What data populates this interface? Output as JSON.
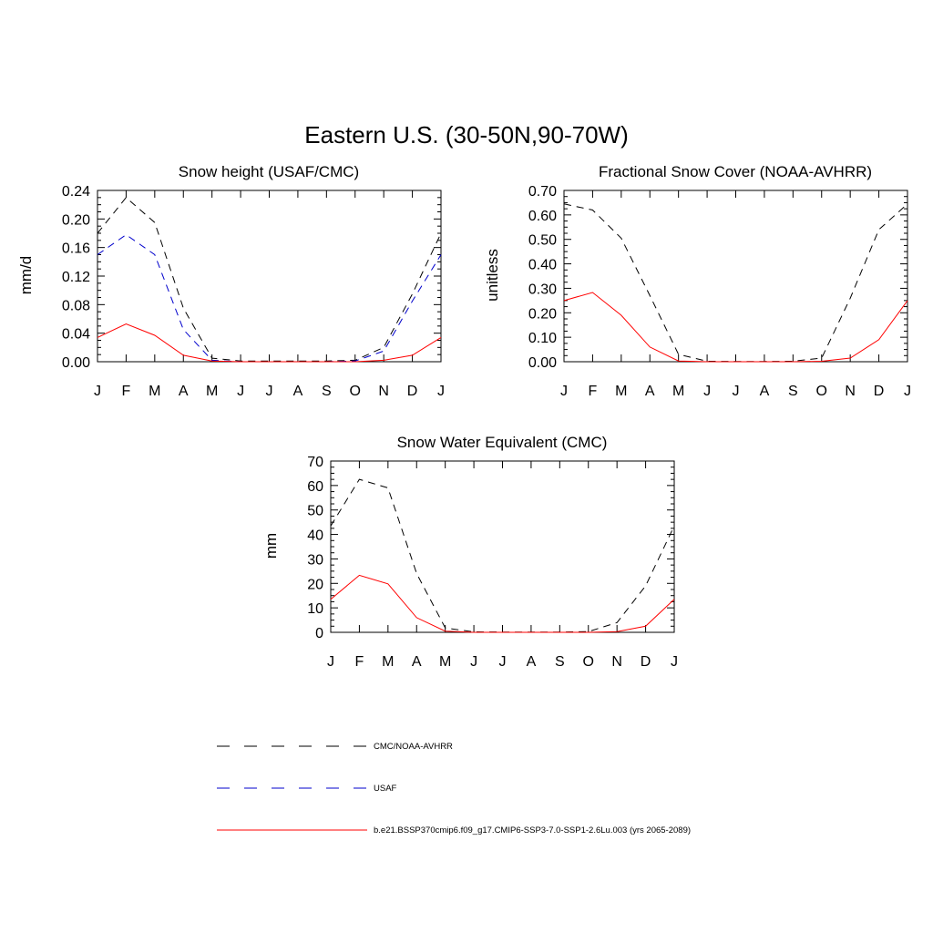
{
  "figure": {
    "title": "Eastern U.S. (30-50N,90-70W)"
  },
  "colors": {
    "obs": "#000000",
    "usaf": "#0000cc",
    "model": "#ff0000"
  },
  "legend": [
    {
      "label": "CMC/NOAA-AVHRR",
      "color": "#000000",
      "dash": "dashed"
    },
    {
      "label": "USAF",
      "color": "#0000cc",
      "dash": "dashed"
    },
    {
      "label": "b.e21.BSSP370cmip6.f09_g17.CMIP6-SSP3-7.0-SSP1-2.6Lu.003 (yrs 2065-2089)",
      "color": "#ff0000",
      "dash": "solid"
    }
  ],
  "chart_data": [
    {
      "type": "line",
      "title": "Snow height (USAF/CMC)",
      "xlabel": "",
      "ylabel": "mm/d",
      "categories": [
        "J",
        "F",
        "M",
        "A",
        "M",
        "J",
        "J",
        "A",
        "S",
        "O",
        "N",
        "D",
        "J"
      ],
      "ylim": [
        0,
        0.24
      ],
      "yticks": [
        "0.00",
        "0.04",
        "0.08",
        "0.12",
        "0.16",
        "0.20",
        "0.24"
      ],
      "series": [
        {
          "name": "CMC/NOAA-AVHRR",
          "values": [
            0.18,
            0.23,
            0.195,
            0.075,
            0.005,
            0.001,
            0.001,
            0.001,
            0.001,
            0.002,
            0.02,
            0.095,
            0.18
          ]
        },
        {
          "name": "USAF",
          "values": [
            0.15,
            0.178,
            0.15,
            0.045,
            0.002,
            0.0,
            0.0,
            0.0,
            0.0,
            0.001,
            0.015,
            0.085,
            0.15
          ]
        },
        {
          "name": "b.e21.BSSP370cmip6.f09_g17.CMIP6-SSP3-7.0-SSP1-2.6Lu.003 (yrs 2065-2089)",
          "values": [
            0.034,
            0.053,
            0.037,
            0.009,
            0.001,
            0.0,
            0.0,
            0.0,
            0.0,
            0.0,
            0.002,
            0.009,
            0.034
          ]
        }
      ]
    },
    {
      "type": "line",
      "title": "Fractional Snow Cover (NOAA-AVHRR)",
      "xlabel": "",
      "ylabel": "unitless",
      "categories": [
        "J",
        "F",
        "M",
        "A",
        "M",
        "J",
        "J",
        "A",
        "S",
        "O",
        "N",
        "D",
        "J"
      ],
      "ylim": [
        0,
        0.7
      ],
      "yticks": [
        "0.00",
        "0.10",
        "0.20",
        "0.30",
        "0.40",
        "0.50",
        "0.60",
        "0.70"
      ],
      "series": [
        {
          "name": "CMC/NOAA-AVHRR",
          "values": [
            0.645,
            0.62,
            0.505,
            0.27,
            0.03,
            0.002,
            0.001,
            0.001,
            0.002,
            0.015,
            0.26,
            0.54,
            0.645
          ]
        },
        {
          "name": "b.e21.BSSP370cmip6.f09_g17.CMIP6-SSP3-7.0-SSP1-2.6Lu.003 (yrs 2065-2089)",
          "values": [
            0.25,
            0.283,
            0.19,
            0.06,
            0.003,
            0.0,
            0.0,
            0.0,
            0.0,
            0.002,
            0.015,
            0.09,
            0.25
          ]
        }
      ]
    },
    {
      "type": "line",
      "title": "Snow Water Equivalent (CMC)",
      "xlabel": "",
      "ylabel": "mm",
      "categories": [
        "J",
        "F",
        "M",
        "A",
        "M",
        "J",
        "J",
        "A",
        "S",
        "O",
        "N",
        "D",
        "J"
      ],
      "ylim": [
        0,
        70
      ],
      "yticks": [
        "0",
        "10",
        "20",
        "30",
        "40",
        "50",
        "60",
        "70"
      ],
      "series": [
        {
          "name": "CMC/NOAA-AVHRR",
          "values": [
            43.5,
            62.5,
            59.0,
            24.0,
            1.8,
            0.2,
            0.1,
            0.1,
            0.1,
            0.3,
            4.0,
            19.0,
            43.5
          ]
        },
        {
          "name": "b.e21.BSSP370cmip6.f09_g17.CMIP6-SSP3-7.0-SSP1-2.6Lu.003 (yrs 2065-2089)",
          "values": [
            13.5,
            23.3,
            19.8,
            6.0,
            0.5,
            0.0,
            0.0,
            0.0,
            0.0,
            0.0,
            0.3,
            2.5,
            13.5
          ]
        }
      ]
    }
  ]
}
